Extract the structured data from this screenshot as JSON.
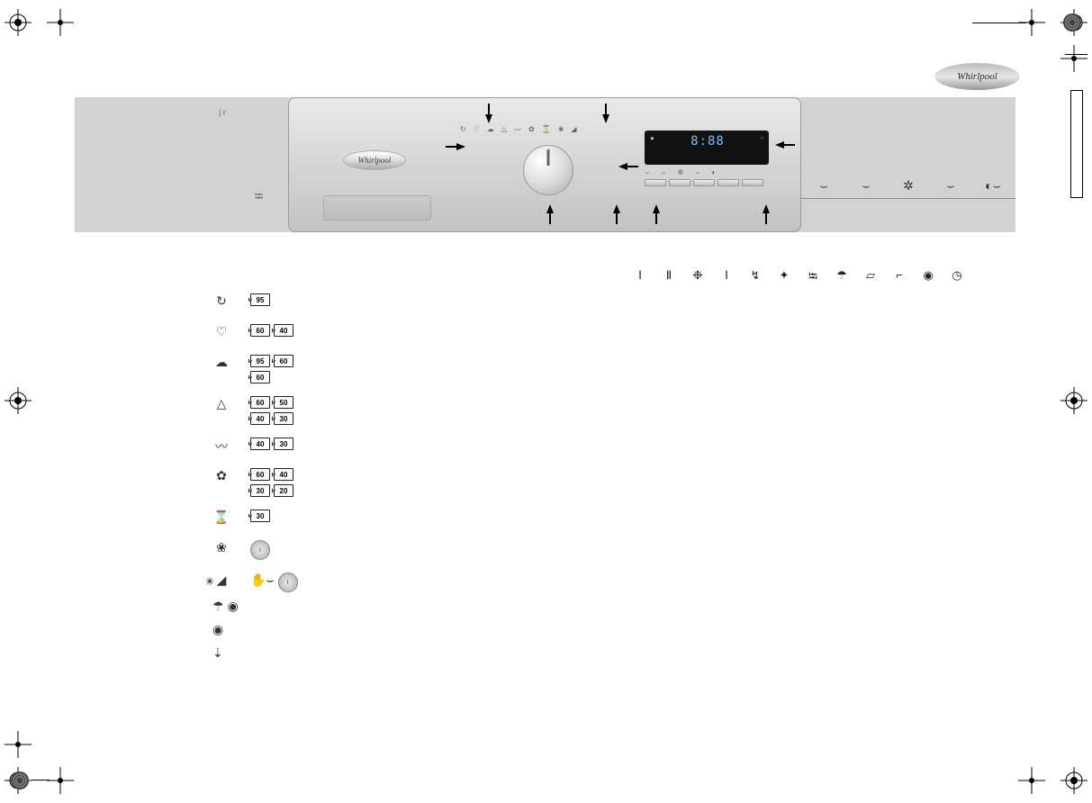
{
  "brand": "Whirlpool",
  "panel": {
    "tiny_mark": "| r",
    "display_time": "8:88",
    "option_buttons_count": 5
  },
  "right_strip_icons": [
    "⌣",
    "⌣",
    "✲",
    "⌣",
    "◐⌣"
  ],
  "phase_icons": [
    "Ⅰ",
    "Ⅱ",
    "❉",
    "Ⅰ",
    "↯",
    "✦",
    "⭾",
    "☂",
    "▱",
    "⌐",
    "◉",
    "◷"
  ],
  "programs": [
    {
      "icon": "↻",
      "temps": [
        "95"
      ]
    },
    {
      "icon": "♡",
      "temps": [
        "60",
        "40"
      ]
    },
    {
      "icon": "☁",
      "temps": [
        "95",
        "60",
        "60"
      ]
    },
    {
      "icon": "△",
      "temps": [
        "60",
        "50",
        "40",
        "30"
      ]
    },
    {
      "icon": "〰",
      "temps": [
        "40",
        "30"
      ]
    },
    {
      "icon": "✿",
      "temps": [
        "60",
        "40",
        "30",
        "20"
      ]
    },
    {
      "icon": "⌛",
      "temps": [
        "30"
      ]
    },
    {
      "icon": "❀",
      "badge": "Woolmark"
    },
    {
      "icon": "◢",
      "hand": true,
      "badge": "Woolmark",
      "asterisk": true
    }
  ],
  "special": [
    {
      "icons": [
        "☂",
        "◉"
      ]
    },
    {
      "icons": [
        "◉"
      ]
    },
    {
      "icons": [
        "⇣"
      ]
    }
  ],
  "colors": {
    "panel_bg": "#d8d8d8",
    "display_bg": "#111111",
    "display_text": "#77bbff",
    "border": "#222222"
  }
}
